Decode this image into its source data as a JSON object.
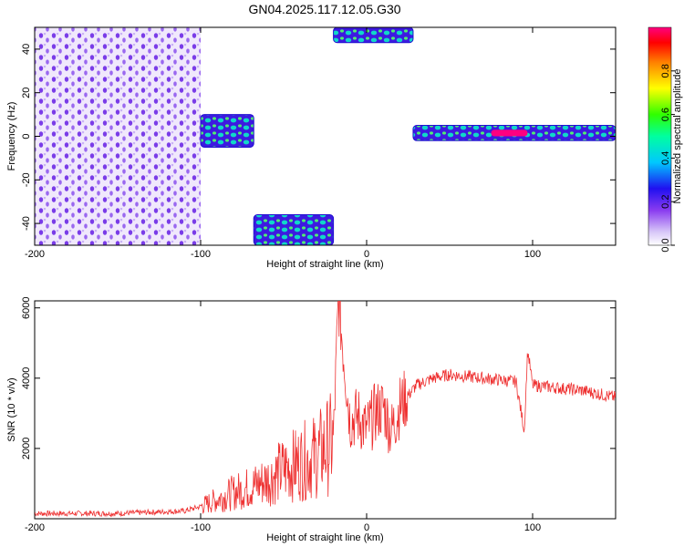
{
  "title": "GN04.2025.117.12.05.G30",
  "chart_data": [
    {
      "type": "heatmap",
      "xlabel": "Height of straight line (km)",
      "ylabel": "Frequency (Hz)",
      "xlim": [
        -200,
        150
      ],
      "ylim": [
        -50,
        50
      ],
      "xticks": [
        -200,
        -100,
        0,
        100
      ],
      "yticks": [
        -40,
        -20,
        0,
        20,
        40
      ],
      "colorbar": {
        "label": "Normalized spectral amplitude",
        "range": [
          0,
          1
        ],
        "ticks": [
          "0.0",
          "0.2",
          "0.4",
          "0.6",
          "0.8"
        ]
      },
      "regions": [
        {
          "x": [
            -200,
            -100
          ],
          "y": [
            -50,
            50
          ],
          "level": 0.1
        },
        {
          "x": [
            -100,
            -68
          ],
          "y": [
            -5,
            10
          ],
          "level": 0.4
        },
        {
          "x": [
            -68,
            -20
          ],
          "y": [
            -50,
            -36
          ],
          "level": 0.4
        },
        {
          "x": [
            -20,
            28
          ],
          "y": [
            43,
            50
          ],
          "level": 0.5
        },
        {
          "x": [
            28,
            150
          ],
          "y": [
            -2,
            5
          ],
          "level": 0.45
        },
        {
          "x": [
            75,
            97
          ],
          "y": [
            0,
            3
          ],
          "level": 1.0
        }
      ]
    },
    {
      "type": "line",
      "xlabel": "Height of straight line (km)",
      "ylabel": "SNR (10 * v/v)",
      "xlim": [
        -200,
        150
      ],
      "ylim": [
        0,
        6200
      ],
      "xticks": [
        -200,
        -100,
        0,
        100
      ],
      "yticks": [
        2000,
        4000,
        6000
      ],
      "color": "#ee3030",
      "x": [
        -200,
        -150,
        -110,
        -100,
        -90,
        -80,
        -70,
        -60,
        -50,
        -40,
        -30,
        -25,
        -20,
        -17,
        -10,
        -5,
        0,
        5,
        10,
        15,
        20,
        30,
        40,
        50,
        60,
        70,
        80,
        90,
        95,
        97,
        100,
        110,
        120,
        130,
        140,
        150
      ],
      "y": [
        150,
        150,
        220,
        350,
        550,
        750,
        900,
        1100,
        1400,
        1600,
        1800,
        2000,
        2200,
        6200,
        2800,
        2900,
        2500,
        3000,
        3200,
        2500,
        3200,
        3800,
        4000,
        4100,
        4050,
        4000,
        3950,
        3900,
        2500,
        4800,
        3800,
        3750,
        3700,
        3650,
        3550,
        3450
      ]
    }
  ]
}
